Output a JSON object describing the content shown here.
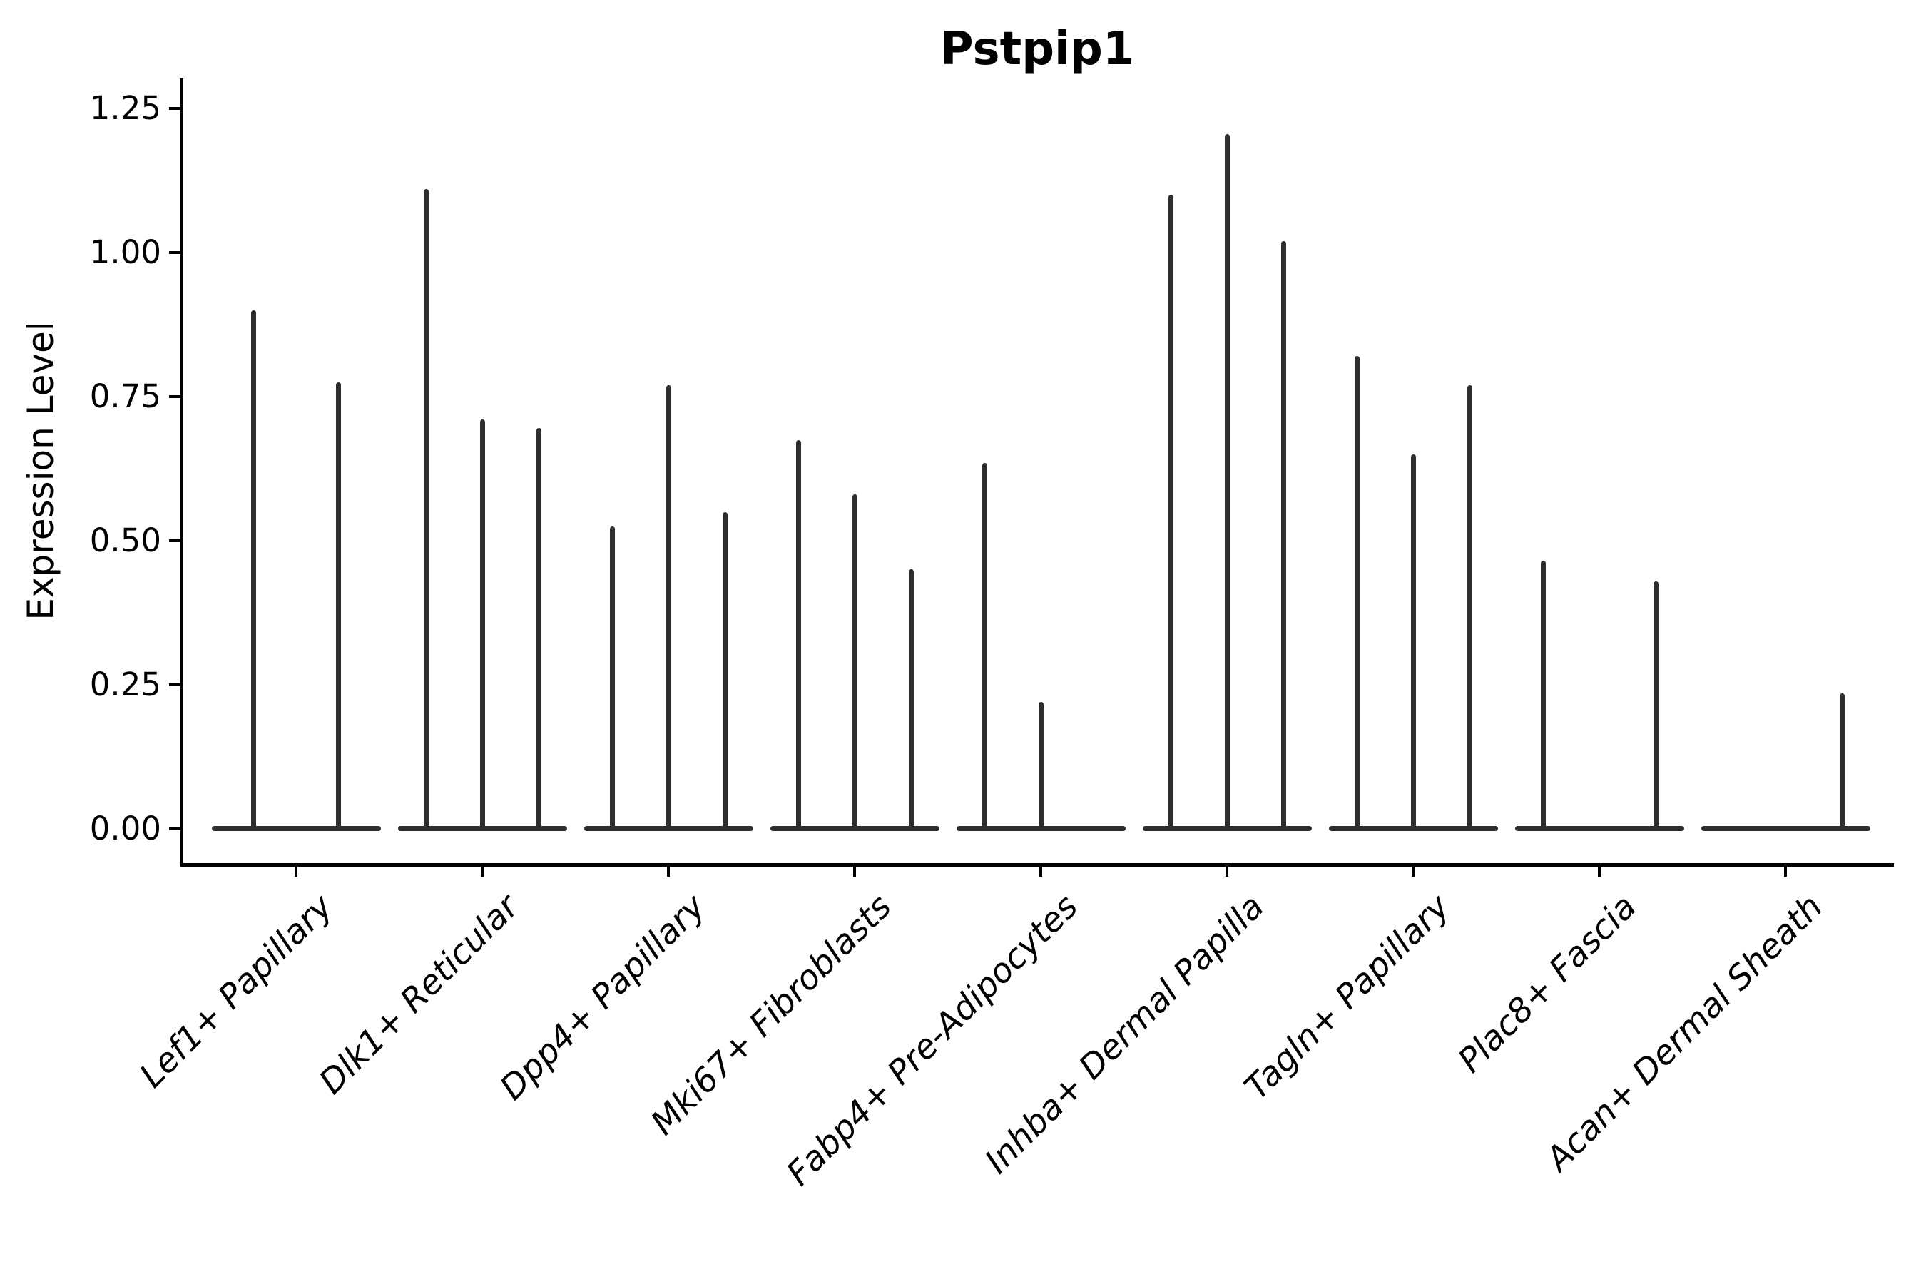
{
  "chart_data": {
    "type": "violin",
    "title": "Pstpip1",
    "xlabel": "",
    "ylabel": "Expression Level",
    "ylim": [
      -0.06,
      1.3
    ],
    "y_ticks": [
      0,
      0.25,
      0.5,
      0.75,
      1.0,
      1.25
    ],
    "y_tick_labels": [
      "0.00",
      "0.25",
      "0.50",
      "0.75",
      "1.00",
      "1.25"
    ],
    "grid": false,
    "legend": "none",
    "style_note": "single-gene expression violin plot; each cell-type group holds 2-3 very thin violins collapsed into a flat bar at 0 with a narrow spike rising to the max expression value",
    "colors": {
      "violin": "#2d2d2d",
      "axis": "#000000",
      "text": "#000000",
      "background": "#ffffff"
    },
    "categories": [
      "Lef1+ Papillary",
      "Dlk1+ Reticular",
      "Dpp4+ Papillary",
      "Mki67+ Fibroblasts",
      "Fabp4+ Pre-Adipocytes",
      "Inhba+ Dermal Papilla",
      "Tagln+ Papillary",
      "Plac8+ Fascia",
      "Acan+ Dermal Sheath"
    ],
    "groups": [
      {
        "category": "Lef1+ Papillary",
        "n_violins": 2,
        "violins": [
          {
            "slot": 1,
            "peak": 0.9
          },
          {
            "slot": 2,
            "peak": 0.775
          }
        ]
      },
      {
        "category": "Dlk1+ Reticular",
        "n_violins": 3,
        "violins": [
          {
            "slot": 1,
            "peak": 1.11
          },
          {
            "slot": 2,
            "peak": 0.71
          },
          {
            "slot": 3,
            "peak": 0.695
          }
        ]
      },
      {
        "category": "Dpp4+ Papillary",
        "n_violins": 3,
        "violins": [
          {
            "slot": 1,
            "peak": 0.525
          },
          {
            "slot": 2,
            "peak": 0.77
          },
          {
            "slot": 3,
            "peak": 0.55
          }
        ]
      },
      {
        "category": "Mki67+ Fibroblasts",
        "n_violins": 3,
        "violins": [
          {
            "slot": 1,
            "peak": 0.675
          },
          {
            "slot": 2,
            "peak": 0.58
          },
          {
            "slot": 3,
            "peak": 0.45
          }
        ]
      },
      {
        "category": "Fabp4+ Pre-Adipocytes",
        "n_violins": 3,
        "violins": [
          {
            "slot": 1,
            "peak": 0.635
          },
          {
            "slot": 2,
            "peak": 0.22
          }
        ]
      },
      {
        "category": "Inhba+ Dermal Papilla",
        "n_violins": 3,
        "violins": [
          {
            "slot": 1,
            "peak": 1.1
          },
          {
            "slot": 2,
            "peak": 1.205
          },
          {
            "slot": 3,
            "peak": 1.02
          }
        ]
      },
      {
        "category": "Tagln+ Papillary",
        "n_violins": 3,
        "violins": [
          {
            "slot": 1,
            "peak": 0.82
          },
          {
            "slot": 2,
            "peak": 0.65
          },
          {
            "slot": 3,
            "peak": 0.77
          }
        ]
      },
      {
        "category": "Plac8+ Fascia",
        "n_violins": 3,
        "violins": [
          {
            "slot": 1,
            "peak": 0.465
          },
          {
            "slot": 3,
            "peak": 0.43
          }
        ]
      },
      {
        "category": "Acan+ Dermal Sheath",
        "n_violins": 3,
        "violins": [
          {
            "slot": 3,
            "peak": 0.235
          }
        ]
      }
    ]
  }
}
